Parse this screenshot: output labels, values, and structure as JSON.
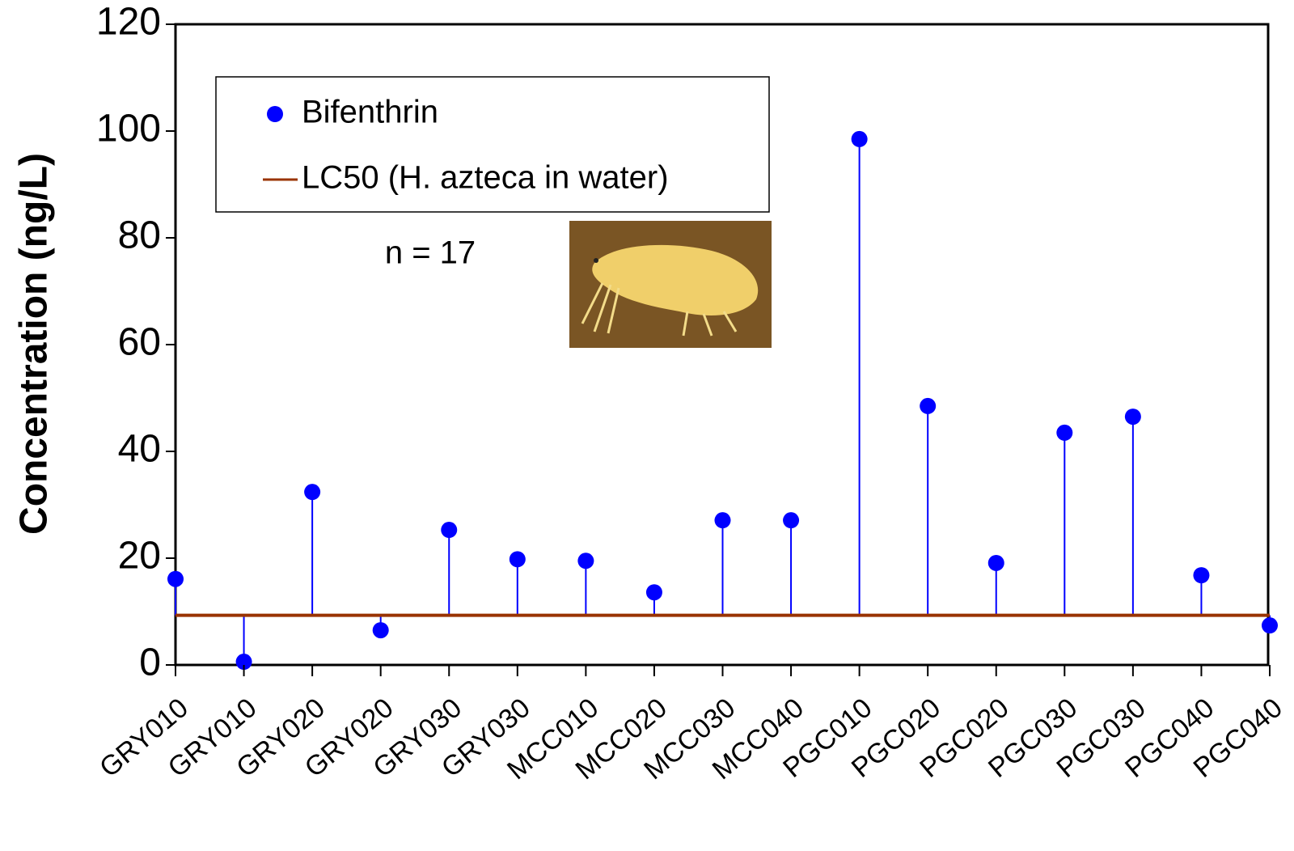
{
  "chart_data": {
    "type": "stem",
    "y_label": "Concentration (ng/L)",
    "annotation": "n = 17",
    "categories": [
      "GRY010",
      "GRY010",
      "GRY020",
      "GRY020",
      "GRY030",
      "GRY030",
      "MCC010",
      "MCC020",
      "MCC030",
      "MCC040",
      "PGC010",
      "PGC020",
      "PGC020",
      "PGC030",
      "PGC030",
      "PGC040",
      "PGC040"
    ],
    "series": [
      {
        "name": "Bifenthrin",
        "color": "#0000ff",
        "values": [
          16.1,
          0.6,
          32.4,
          6.5,
          25.3,
          19.8,
          19.5,
          13.6,
          27.1,
          27.1,
          98.5,
          48.5,
          19.1,
          43.5,
          46.5,
          16.8,
          7.4
        ]
      }
    ],
    "reference_line": {
      "name": "LC50 (H. azteca in water)",
      "value": 9.3,
      "color": "#993300"
    },
    "ylim": [
      0,
      120
    ],
    "yticks": [
      0,
      20,
      40,
      60,
      80,
      100,
      120
    ]
  }
}
